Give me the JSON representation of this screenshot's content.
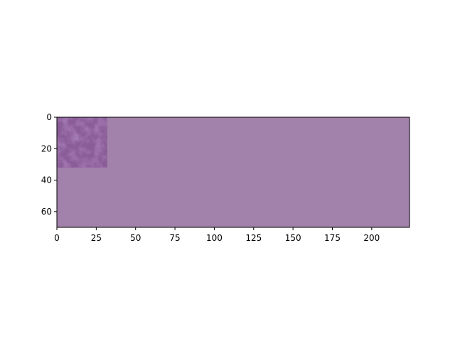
{
  "chart_data": {
    "type": "heatmap",
    "title": "",
    "xlabel": "",
    "ylabel": "",
    "image_extent": {
      "cols": 224,
      "rows": 70
    },
    "xlim": [
      0,
      224
    ],
    "ylim": [
      70,
      0
    ],
    "y_axis_inverted": true,
    "x_ticks": [
      0,
      25,
      50,
      75,
      100,
      125,
      150,
      175,
      200
    ],
    "y_ticks": [
      0,
      20,
      40,
      60
    ],
    "regions": [
      {
        "name": "background",
        "x_range": [
          0,
          224
        ],
        "y_range": [
          0,
          70
        ],
        "color": "#a281ab",
        "textured": false
      },
      {
        "name": "texture-patch",
        "x_range": [
          0,
          32
        ],
        "y_range": [
          0,
          32
        ],
        "color": "#8a5c98",
        "textured": true
      }
    ],
    "grid": false,
    "legend": "none"
  }
}
